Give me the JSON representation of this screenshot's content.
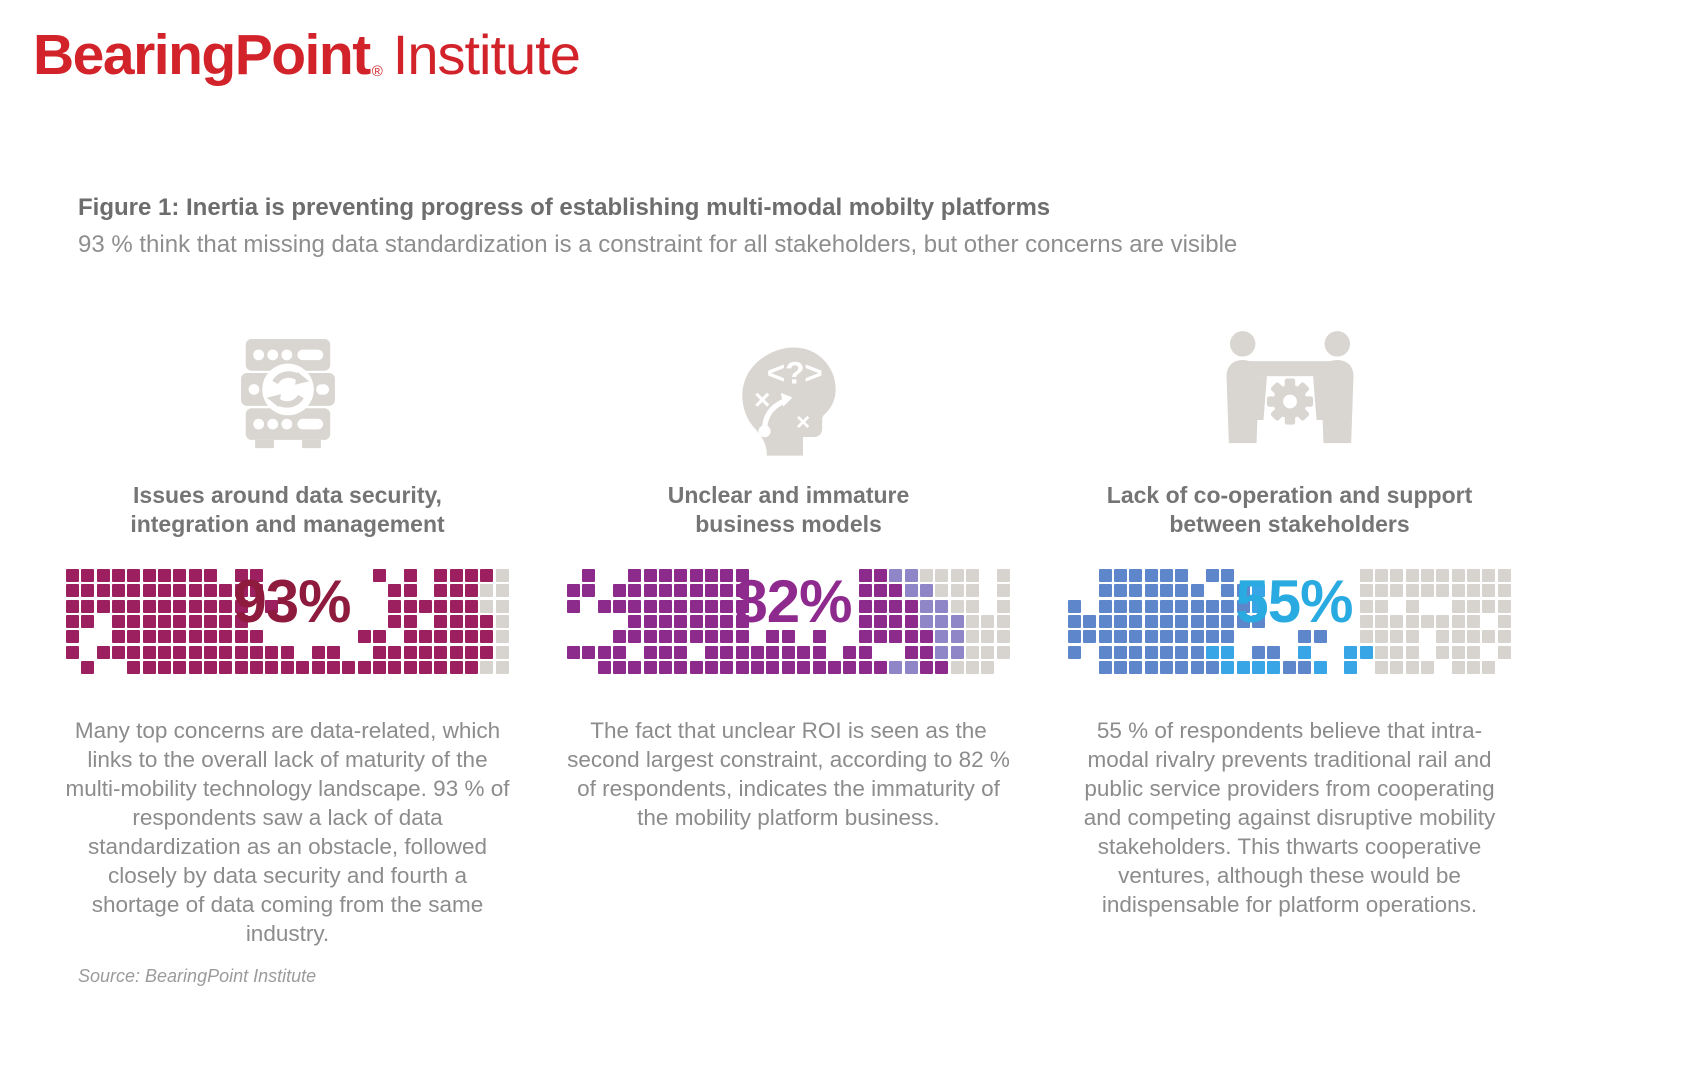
{
  "brand": {
    "name": "BearingPoint",
    "reg": "®",
    "suffix": "Institute",
    "color": "#d2232a"
  },
  "figure": {
    "title": "Figure 1: Inertia is preventing progress of establishing multi-modal mobilty platforms",
    "subtitle": "93 % think that missing data standardization is a constraint for all stakeholders, but other concerns are visible"
  },
  "columns": [
    {
      "icon": "server-sync-icon",
      "heading_line1": "Issues around data security,",
      "heading_line2": "integration and management",
      "pct": "93%",
      "paragraph": "Many top concerns are data-related, which links to the overall lack of maturity of the multi-mobility technology landscape. 93 % of respondents saw a lack of data standardization as an obstacle, followed closely by data security and fourth a shortage of data coming from the same industry."
    },
    {
      "icon": "thinking-head-icon",
      "heading_line1": "Unclear and immature",
      "heading_line2": "business models",
      "pct": "82%",
      "paragraph": "The fact that unclear ROI is seen as the second largest constraint, according to 82 % of respondents, indicates the immaturity of the mobility platform business."
    },
    {
      "icon": "stakeholders-gear-icon",
      "heading_line1": "Lack of co-operation and support",
      "heading_line2": "between stakeholders",
      "pct": "55%",
      "paragraph": "55 % of respondents believe that intra-modal rivalry prevents traditional rail and public service providers from cooperating and competing against disruptive mobility stakeholders. This thwarts cooperative ventures, although these would be indispensable for platform operations."
    }
  ],
  "source": "Source: BearingPoint Institute",
  "chart_data": [
    {
      "type": "waffle",
      "heading": "Issues around data security, integration and management",
      "value": 93,
      "unit": "%",
      "grid": {
        "columns": 29,
        "rows": 7
      },
      "colors": {
        "filled": "#9c1f60",
        "light": "#9c1f60",
        "remainder": "#d7d4cf",
        "label": "#8e1a3e"
      },
      "pattern": [
        "##########.##.......#.#.####g",
        "#############........##.###gg",
        "############.#.......######gg",
        "##.#########.........##.####g",
        "#..##########......##.######g",
        "#.#############.##..########g",
        ".#..#######################gg"
      ]
    },
    {
      "type": "waffle",
      "heading": "Unclear and immature business models",
      "value": 82,
      "unit": "%",
      "grid": {
        "columns": 29,
        "rows": 7
      },
      "colors": {
        "filled": "#8d2b8d",
        "light": "#8f86c8",
        "remainder": "#d7d4cf",
        "label": "#8e2a8e"
      },
      "pattern": [
        ".#..########.......##LLgggg.g",
        "##.#########.......###LLggg.g",
        "#.##########.......####LLgg.g",
        "....########.......####LLLggg",
        "...#########.##.#..#####LLggg",
        "####.###.########.##..##LLggg",
        "..###################LL##ggg."
      ]
    },
    {
      "type": "waffle",
      "heading": "Lack of co-operation and support between stakeholders",
      "value": 55,
      "unit": "%",
      "grid": {
        "columns": 29,
        "rows": 7
      },
      "colors": {
        "filled": "#5d86cb",
        "light": "#38a6e6",
        "remainder": "#d7d4cf",
        "label": "#29abe2"
      },
      "pattern": [
        "..######.##........gggggggggg",
        "..#######.##L......gggggggggg",
        "#.##########L......gg.g..gggg",
        "#############......gggggggg.g",
        "###########....##..gggg.ggggg",
        "#.#######LL.##.L..LLggg.ggg.g",
        "..########LLLL##L.L.gggg.ggg."
      ]
    }
  ]
}
